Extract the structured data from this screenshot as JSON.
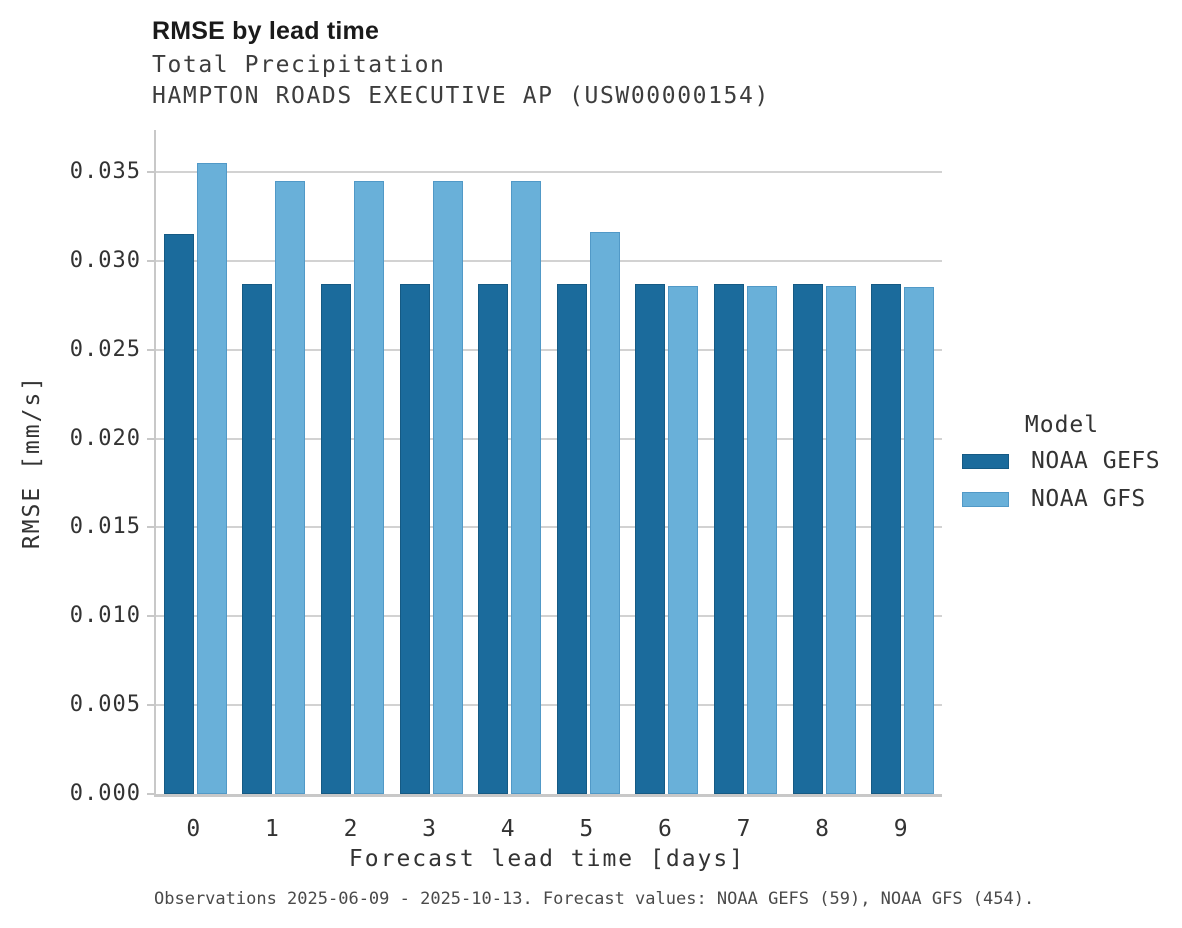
{
  "header": {
    "title": "RMSE by lead time",
    "subtitle_line1": "Total Precipitation",
    "subtitle_line2": "HAMPTON ROADS EXECUTIVE AP (USW00000154)"
  },
  "chart_data": {
    "type": "bar",
    "title": "RMSE by lead time",
    "subtitle": [
      "Total Precipitation",
      "HAMPTON ROADS EXECUTIVE AP (USW00000154)"
    ],
    "categories": [
      "0",
      "1",
      "2",
      "3",
      "4",
      "5",
      "6",
      "7",
      "8",
      "9"
    ],
    "series": [
      {
        "name": "NOAA GEFS",
        "color": "#1b6b9c",
        "edge_color": "#155a84",
        "values": [
          0.0315,
          0.0287,
          0.0287,
          0.0287,
          0.0287,
          0.0287,
          0.0287,
          0.0287,
          0.0287,
          0.0287
        ]
      },
      {
        "name": "NOAA GFS",
        "color": "#69b0d9",
        "edge_color": "#5199c7",
        "values": [
          0.0355,
          0.0345,
          0.0345,
          0.0345,
          0.0345,
          0.0316,
          0.0286,
          0.0286,
          0.0286,
          0.0285
        ]
      }
    ],
    "xlabel": "Forecast lead time [days]",
    "ylabel": "RMSE [mm/s]",
    "ylim": [
      0,
      0.03736
    ],
    "yticks": [
      0.0,
      0.005,
      0.01,
      0.015,
      0.02,
      0.025,
      0.03,
      0.035
    ],
    "ytick_labels": [
      "0.000",
      "0.005",
      "0.010",
      "0.015",
      "0.020",
      "0.025",
      "0.030",
      "0.035"
    ],
    "grid": true,
    "legend_title": "Model",
    "legend_position": "center-right"
  },
  "legend": {
    "title": "Model",
    "items": [
      {
        "label": "NOAA GEFS",
        "color": "#1b6b9c",
        "edge_color": "#155a84"
      },
      {
        "label": "NOAA GFS",
        "color": "#69b0d9",
        "edge_color": "#5199c7"
      }
    ]
  },
  "footer": {
    "caption": "Observations 2025-06-09 - 2025-10-13. Forecast values: NOAA GEFS (59), NOAA GFS (454)."
  },
  "colors": {
    "grid": "#d2d2d2",
    "spine": "#c8c8c8",
    "title_text": "#1a1a1a",
    "subtitle_text": "#3d3d3d",
    "tick_text": "#333333",
    "caption_text": "#4a4a4a",
    "background": "#ffffff"
  }
}
